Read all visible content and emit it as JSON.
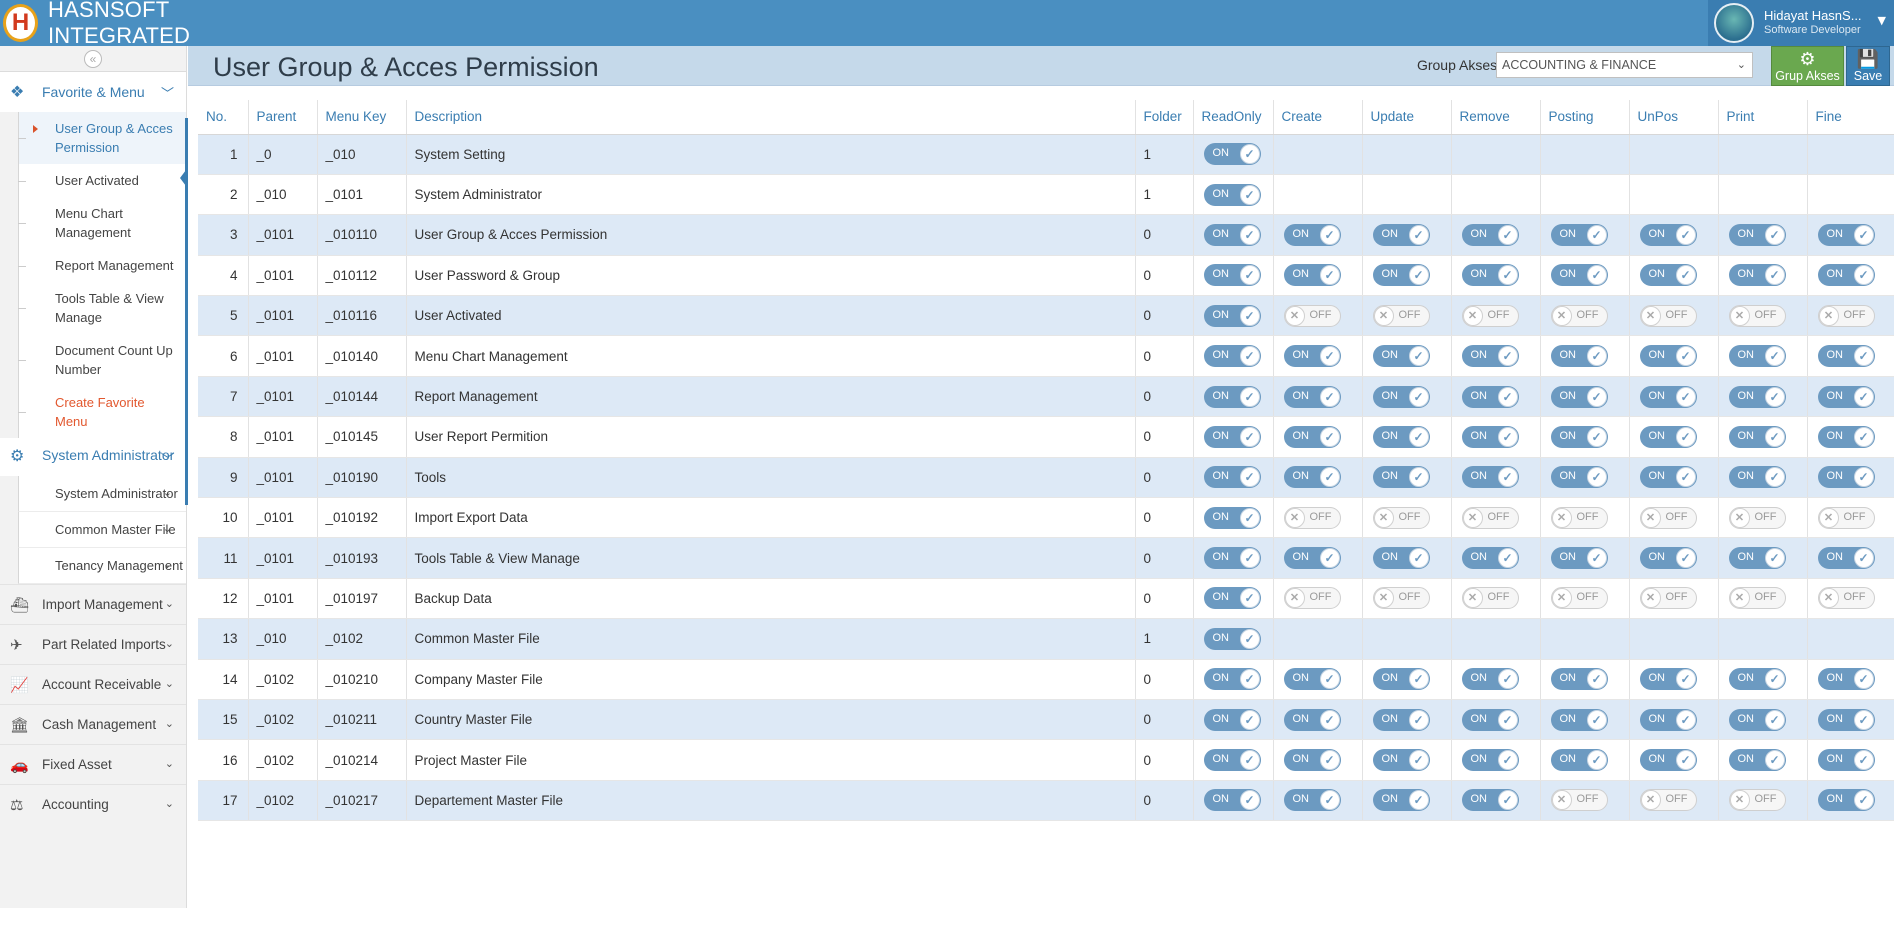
{
  "app": {
    "brand": "HASNSOFT INTEGRATED",
    "logo_letter": "H"
  },
  "user": {
    "name": "Hidayat HasnS...",
    "role": "Software Developer"
  },
  "sidebar": {
    "favorite": {
      "label": "Favorite & Menu",
      "items": [
        {
          "label": "User Group & Acces Permission",
          "active": true
        },
        {
          "label": "User Activated"
        },
        {
          "label": "Menu Chart Management"
        },
        {
          "label": "Report Management"
        },
        {
          "label": "Tools Table & View Manage"
        },
        {
          "label": "Document Count Up Number"
        },
        {
          "label": "Create Favorite Menu",
          "accent": true
        }
      ]
    },
    "system": {
      "label": "System Administrator",
      "items": [
        {
          "label": "System Administrator"
        },
        {
          "label": "Common Master File"
        },
        {
          "label": "Tenancy Management"
        }
      ]
    },
    "groups": [
      {
        "label": "Import Management",
        "icon": "ship-icon"
      },
      {
        "label": "Part Related Imports",
        "icon": "plane-icon"
      },
      {
        "label": "Account Receivable",
        "icon": "line-chart-icon"
      },
      {
        "label": "Cash Management",
        "icon": "bank-icon"
      },
      {
        "label": "Fixed Asset",
        "icon": "car-icon"
      },
      {
        "label": "Accounting",
        "icon": "scale-icon"
      }
    ]
  },
  "page": {
    "title": "User Group & Acces Permission",
    "group_akses_label": "Group Akses:",
    "group_akses_value": "ACCOUNTING & FINANCE",
    "btn_grup": "Grup Akses",
    "btn_save": "Save"
  },
  "toggle": {
    "on": "ON",
    "off": "OFF"
  },
  "table": {
    "headers": [
      "No.",
      "Parent",
      "Menu Key",
      "Description",
      "Folder",
      "ReadOnly",
      "Create",
      "Update",
      "Remove",
      "Posting",
      "UnPos",
      "Print",
      "Fine"
    ],
    "rows": [
      {
        "no": "1",
        "parent": "_0",
        "key": "_010",
        "desc": "System Setting",
        "folder": "1",
        "perms": [
          1
        ]
      },
      {
        "no": "2",
        "parent": "_010",
        "key": "_0101",
        "desc": "System Administrator",
        "folder": "1",
        "perms": [
          1
        ]
      },
      {
        "no": "3",
        "parent": "_0101",
        "key": "_010110",
        "desc": "User Group & Acces Permission",
        "folder": "0",
        "perms": [
          1,
          1,
          1,
          1,
          1,
          1,
          1,
          1
        ]
      },
      {
        "no": "4",
        "parent": "_0101",
        "key": "_010112",
        "desc": "User Password & Group",
        "folder": "0",
        "perms": [
          1,
          1,
          1,
          1,
          1,
          1,
          1,
          1
        ]
      },
      {
        "no": "5",
        "parent": "_0101",
        "key": "_010116",
        "desc": "User Activated",
        "folder": "0",
        "perms": [
          1,
          0,
          0,
          0,
          0,
          0,
          0,
          0
        ]
      },
      {
        "no": "6",
        "parent": "_0101",
        "key": "_010140",
        "desc": "Menu Chart Management",
        "folder": "0",
        "perms": [
          1,
          1,
          1,
          1,
          1,
          1,
          1,
          1
        ]
      },
      {
        "no": "7",
        "parent": "_0101",
        "key": "_010144",
        "desc": "Report Management",
        "folder": "0",
        "perms": [
          1,
          1,
          1,
          1,
          1,
          1,
          1,
          1
        ]
      },
      {
        "no": "8",
        "parent": "_0101",
        "key": "_010145",
        "desc": "User Report Permition",
        "folder": "0",
        "perms": [
          1,
          1,
          1,
          1,
          1,
          1,
          1,
          1
        ]
      },
      {
        "no": "9",
        "parent": "_0101",
        "key": "_010190",
        "desc": "Tools",
        "folder": "0",
        "perms": [
          1,
          1,
          1,
          1,
          1,
          1,
          1,
          1
        ]
      },
      {
        "no": "10",
        "parent": "_0101",
        "key": "_010192",
        "desc": "Import Export Data",
        "folder": "0",
        "perms": [
          1,
          0,
          0,
          0,
          0,
          0,
          0,
          0
        ]
      },
      {
        "no": "11",
        "parent": "_0101",
        "key": "_010193",
        "desc": "Tools Table & View Manage",
        "folder": "0",
        "perms": [
          1,
          1,
          1,
          1,
          1,
          1,
          1,
          1
        ]
      },
      {
        "no": "12",
        "parent": "_0101",
        "key": "_010197",
        "desc": "Backup Data",
        "folder": "0",
        "perms": [
          1,
          0,
          0,
          0,
          0,
          0,
          0,
          0
        ]
      },
      {
        "no": "13",
        "parent": "_010",
        "key": "_0102",
        "desc": "Common Master File",
        "folder": "1",
        "perms": [
          1
        ]
      },
      {
        "no": "14",
        "parent": "_0102",
        "key": "_010210",
        "desc": "Company Master File",
        "folder": "0",
        "perms": [
          1,
          1,
          1,
          1,
          1,
          1,
          1,
          1
        ]
      },
      {
        "no": "15",
        "parent": "_0102",
        "key": "_010211",
        "desc": "Country Master File",
        "folder": "0",
        "perms": [
          1,
          1,
          1,
          1,
          1,
          1,
          1,
          1
        ]
      },
      {
        "no": "16",
        "parent": "_0102",
        "key": "_010214",
        "desc": "Project Master File",
        "folder": "0",
        "perms": [
          1,
          1,
          1,
          1,
          1,
          1,
          1,
          1
        ]
      },
      {
        "no": "17",
        "parent": "_0102",
        "key": "_010217",
        "desc": "Departement Master File",
        "folder": "0",
        "perms": [
          1,
          1,
          1,
          1,
          0,
          0,
          0,
          1
        ]
      }
    ]
  }
}
